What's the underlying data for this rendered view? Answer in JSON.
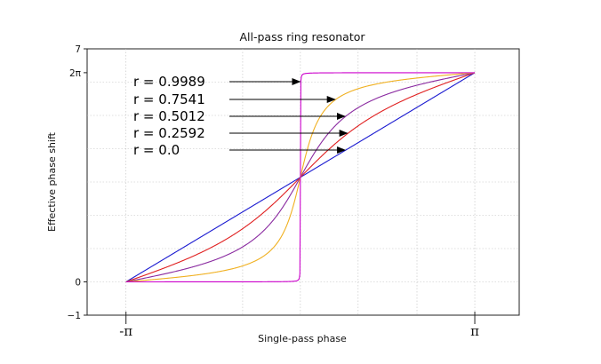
{
  "chart_data": {
    "type": "line",
    "title": "All-pass ring resonator",
    "xlabel": "Single-pass phase",
    "ylabel": "Effective phase shift",
    "xlim": [
      -3.14159,
      3.14159
    ],
    "ylim": [
      -1,
      7
    ],
    "x_tick_labels": [
      "-π",
      "π"
    ],
    "y_tick_labels": [
      "7",
      "2π",
      "0",
      "−1"
    ],
    "grid": true,
    "series": [
      {
        "name": "r  = 0.9989",
        "r": 0.9989,
        "color": "#cc00cc"
      },
      {
        "name": "r = 0.7541",
        "r": 0.7541,
        "color": "#f0b020"
      },
      {
        "name": "r = 0.5012",
        "r": 0.5012,
        "color": "#8a2aa0"
      },
      {
        "name": "r = 0.2592",
        "r": 0.2592,
        "color": "#e02020"
      },
      {
        "name": "r = 0.0",
        "r": 0.0,
        "color": "#1a1ad0"
      }
    ]
  }
}
